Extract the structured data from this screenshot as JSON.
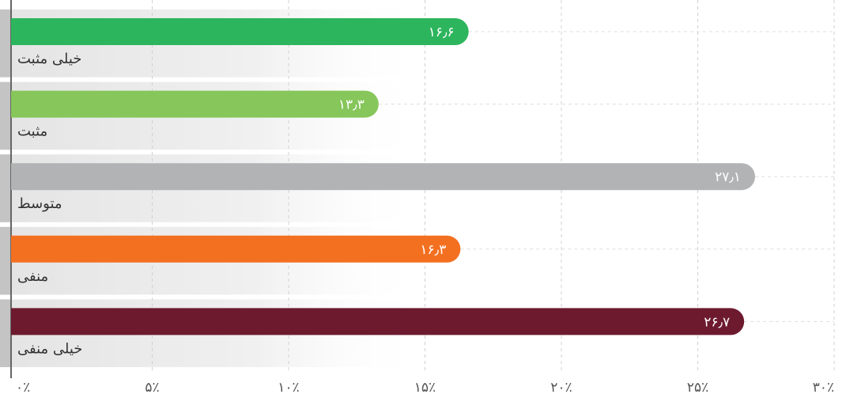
{
  "chart_data": {
    "type": "bar",
    "orientation": "horizontal",
    "categories": [
      "خیلی مثبت",
      "مثبت",
      "متوسط",
      "منفی",
      "خیلی منفی"
    ],
    "values": [
      16.6,
      13.3,
      27.1,
      16.3,
      26.7
    ],
    "value_labels": [
      "۱۶٫۶",
      "۱۳٫۳",
      "۲۷٫۱",
      "۱۶٫۳",
      "۲۶٫۷"
    ],
    "colors": [
      "#2db55d",
      "#86c65a",
      "#b1b3b4",
      "#f47021",
      "#6d1a2f"
    ],
    "xlim": [
      0,
      30
    ],
    "xticks": [
      {
        "value": 0,
        "label": "۰٪"
      },
      {
        "value": 5,
        "label": "۵٪"
      },
      {
        "value": 10,
        "label": "۱۰٪"
      },
      {
        "value": 15,
        "label": "۱۵٪"
      },
      {
        "value": 20,
        "label": "۲۰٪"
      },
      {
        "value": 25,
        "label": "۲۵٪"
      },
      {
        "value": 30,
        "label": "۳۰٪"
      }
    ],
    "grid": true
  }
}
